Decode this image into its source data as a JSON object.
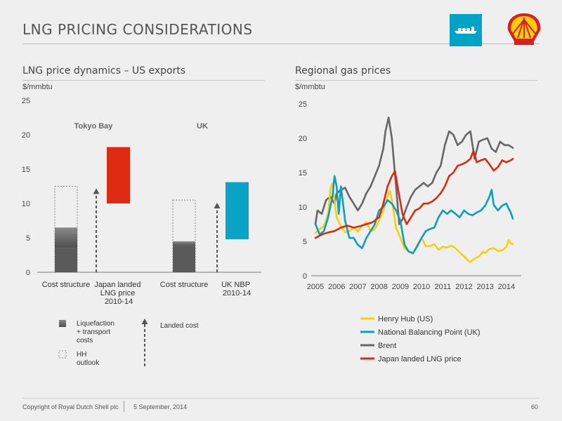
{
  "slide": {
    "title": "LNG PRICING CONSIDERATIONS",
    "icon": "lng-ship-icon",
    "logo": "shell-pecten-logo",
    "colors": {
      "ship_box": "#00a3c8",
      "logo_red": "#dd1d21",
      "logo_yellow": "#fbce07"
    }
  },
  "footer": {
    "copyright": "Copyright of Royal Dutch Shell plc",
    "date": "5 September, 2014",
    "page_number": "60"
  },
  "chart_data": [
    {
      "type": "bar",
      "title": "LNG price dynamics – US exports",
      "ylabel": "$/mmbtu",
      "ylim": [
        0,
        25
      ],
      "yticks": [
        "0",
        "5",
        "10",
        "15",
        "20",
        "25"
      ],
      "groups": [
        {
          "label": "Tokyo Bay",
          "cost_structure": {
            "label": "Cost structure",
            "hh_base_dark": 3.5,
            "liquefaction_transport_top": 6.5,
            "hh_outlook_top": 12.5
          },
          "landed_price": {
            "label": "Japan landed LNG price 2010-14",
            "low": 10,
            "high": 18.2,
            "color": "#dd2a10"
          },
          "landed_cost_arrow_top": 12.2
        },
        {
          "label": "UK",
          "cost_structure": {
            "label": "Cost structure",
            "hh_base_dark": 3.8,
            "liquefaction_transport_top": 4.5,
            "hh_outlook_top": 10.5
          },
          "landed_price": {
            "label": "UK NBP 2010-14",
            "low": 4.8,
            "high": 13.1,
            "color": "#0aa3c6"
          },
          "landed_cost_arrow_top": 10.1
        }
      ],
      "legend": [
        {
          "key": "liquefaction",
          "label": "Liquefaction + transport costs"
        },
        {
          "key": "hh_outlook",
          "label": "HH outlook"
        },
        {
          "key": "landed_cost",
          "label": "Landed cost"
        }
      ]
    },
    {
      "type": "line",
      "title": "Regional gas prices",
      "ylabel": "$/mmbtu",
      "ylim": [
        0,
        25
      ],
      "xlim": [
        2005,
        2014.5
      ],
      "yticks": [
        "0",
        "5",
        "10",
        "15",
        "20",
        "25"
      ],
      "xticks": [
        "2005",
        "2006",
        "2007",
        "2008",
        "2009",
        "2010",
        "2011",
        "2012",
        "2013",
        "2014"
      ],
      "series": [
        {
          "name": "Henry Hub (US)",
          "color": "#f5d00e",
          "x": [
            2005.0,
            2005.2,
            2005.4,
            2005.6,
            2005.7,
            2005.8,
            2005.9,
            2006.0,
            2006.2,
            2006.4,
            2006.6,
            2006.8,
            2007.0,
            2007.2,
            2007.4,
            2007.6,
            2007.8,
            2008.0,
            2008.2,
            2008.4,
            2008.5,
            2008.6,
            2008.8,
            2009.0,
            2009.2,
            2009.4,
            2009.6,
            2009.8,
            2010.0,
            2010.2,
            2010.4,
            2010.6,
            2010.8,
            2011.0,
            2011.2,
            2011.4,
            2011.6,
            2011.8,
            2012.0,
            2012.2,
            2012.3,
            2012.5,
            2012.7,
            2012.9,
            2013.0,
            2013.2,
            2013.4,
            2013.6,
            2013.8,
            2014.0,
            2014.1,
            2014.2,
            2014.3
          ],
          "y": [
            6.2,
            6.8,
            7.2,
            9.0,
            12.5,
            13.5,
            11.0,
            8.5,
            7.2,
            6.3,
            6.5,
            7.0,
            6.4,
            7.3,
            7.8,
            6.5,
            6.8,
            8.0,
            9.5,
            11.5,
            12.4,
            11.0,
            7.0,
            5.5,
            4.0,
            3.5,
            3.2,
            4.5,
            5.5,
            4.3,
            4.3,
            4.6,
            3.8,
            4.2,
            4.1,
            4.4,
            4.0,
            3.4,
            2.8,
            2.2,
            2.0,
            2.5,
            2.8,
            3.5,
            3.3,
            3.9,
            4.0,
            3.6,
            3.7,
            4.2,
            5.2,
            4.7,
            4.6
          ]
        },
        {
          "name": "National Balancing Point (UK)",
          "color": "#0a9fc0",
          "x": [
            2005.0,
            2005.2,
            2005.4,
            2005.6,
            2005.8,
            2005.9,
            2006.0,
            2006.1,
            2006.2,
            2006.4,
            2006.6,
            2006.8,
            2007.0,
            2007.2,
            2007.4,
            2007.6,
            2007.8,
            2008.0,
            2008.2,
            2008.4,
            2008.6,
            2008.8,
            2009.0,
            2009.2,
            2009.4,
            2009.6,
            2009.8,
            2010.0,
            2010.2,
            2010.4,
            2010.6,
            2010.8,
            2011.0,
            2011.2,
            2011.4,
            2011.6,
            2011.8,
            2012.0,
            2012.2,
            2012.4,
            2012.6,
            2012.8,
            2013.0,
            2013.2,
            2013.3,
            2013.4,
            2013.6,
            2013.8,
            2014.0,
            2014.1,
            2014.2,
            2014.3
          ],
          "y": [
            7.5,
            6.0,
            6.5,
            8.5,
            11.5,
            14.5,
            13.0,
            9.0,
            13.0,
            8.0,
            5.5,
            5.5,
            4.5,
            4.0,
            5.5,
            6.5,
            7.5,
            9.5,
            10.0,
            11.0,
            10.5,
            9.5,
            8.0,
            4.5,
            3.5,
            3.3,
            4.3,
            5.5,
            6.5,
            6.8,
            7.0,
            8.5,
            9.5,
            9.0,
            9.5,
            9.0,
            8.5,
            9.5,
            9.0,
            8.8,
            9.2,
            9.5,
            10.2,
            11.5,
            12.5,
            10.3,
            9.5,
            10.2,
            10.5,
            9.8,
            9.2,
            8.3
          ]
        },
        {
          "name": "Brent",
          "color": "#666666",
          "x": [
            2005.0,
            2005.1,
            2005.3,
            2005.5,
            2005.7,
            2005.9,
            2006.0,
            2006.2,
            2006.4,
            2006.6,
            2006.8,
            2007.0,
            2007.2,
            2007.4,
            2007.6,
            2007.8,
            2008.0,
            2008.2,
            2008.3,
            2008.45,
            2008.6,
            2008.8,
            2008.95,
            2009.1,
            2009.3,
            2009.5,
            2009.7,
            2009.9,
            2010.1,
            2010.3,
            2010.5,
            2010.7,
            2010.9,
            2011.1,
            2011.3,
            2011.5,
            2011.7,
            2011.9,
            2012.1,
            2012.3,
            2012.5,
            2012.7,
            2012.9,
            2013.1,
            2013.3,
            2013.5,
            2013.7,
            2013.9,
            2014.1,
            2014.3
          ],
          "y": [
            7.5,
            9.5,
            9.0,
            11.0,
            11.5,
            10.5,
            12.0,
            12.5,
            12.8,
            11.5,
            10.5,
            9.5,
            10.5,
            12.0,
            13.0,
            14.5,
            16.0,
            18.5,
            21.0,
            23.0,
            20.0,
            13.0,
            7.5,
            8.2,
            10.0,
            11.5,
            12.5,
            13.0,
            13.5,
            13.0,
            13.5,
            15.0,
            16.0,
            19.0,
            21.0,
            20.5,
            19.0,
            19.5,
            20.5,
            21.0,
            17.0,
            19.5,
            19.8,
            20.0,
            18.5,
            18.0,
            19.5,
            19.0,
            19.0,
            18.6
          ]
        },
        {
          "name": "Japan landed LNG price",
          "color": "#d92b12",
          "x": [
            2005.0,
            2005.3,
            2005.6,
            2005.9,
            2006.2,
            2006.5,
            2006.8,
            2007.1,
            2007.4,
            2007.7,
            2008.0,
            2008.2,
            2008.4,
            2008.6,
            2008.75,
            2008.9,
            2009.1,
            2009.3,
            2009.5,
            2009.7,
            2009.9,
            2010.1,
            2010.3,
            2010.5,
            2010.7,
            2010.9,
            2011.1,
            2011.3,
            2011.5,
            2011.7,
            2011.9,
            2012.1,
            2012.3,
            2012.45,
            2012.6,
            2012.8,
            2013.0,
            2013.2,
            2013.4,
            2013.6,
            2013.8,
            2014.0,
            2014.2,
            2014.3
          ],
          "y": [
            5.5,
            6.0,
            6.3,
            6.5,
            7.0,
            7.3,
            7.0,
            7.2,
            7.5,
            7.8,
            8.5,
            10.5,
            13.0,
            14.5,
            15.2,
            12.5,
            9.0,
            7.5,
            8.5,
            9.5,
            9.8,
            10.5,
            10.5,
            10.8,
            11.3,
            12.0,
            13.0,
            14.5,
            15.0,
            16.0,
            16.2,
            16.5,
            17.0,
            18.2,
            16.5,
            16.8,
            17.0,
            16.2,
            15.3,
            15.8,
            16.8,
            16.5,
            16.8,
            17.0
          ]
        }
      ]
    }
  ]
}
